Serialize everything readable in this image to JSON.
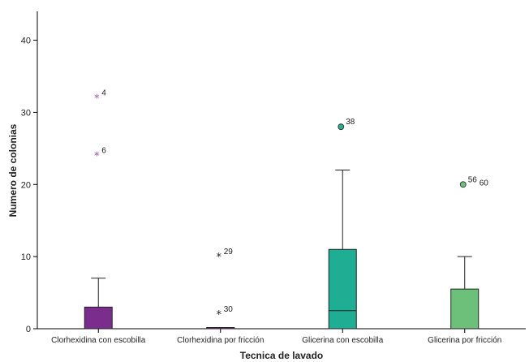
{
  "chart_data": {
    "type": "boxplot",
    "xlabel": "Tecnica de lavado",
    "ylabel": "Numero de colonias",
    "ylim": [
      0,
      44
    ],
    "yticks": [
      0,
      10,
      20,
      30,
      40
    ],
    "grid": false,
    "categories": [
      "Clorhexidina con escobilla",
      "Clorhexidina por fricción",
      "Glicerina con escobilla",
      "Glicerina por fricción"
    ],
    "boxes": [
      {
        "category": "Clorhexidina con escobilla",
        "color": "#7B2D8E",
        "min": 0,
        "q1": 0,
        "median": 0,
        "q3": 3,
        "max": 7,
        "outliers": [
          {
            "value": 32,
            "label": "4",
            "marker": "star",
            "color": "#9B4FA8"
          },
          {
            "value": 24,
            "label": "6",
            "marker": "star",
            "color": "#9B4FA8"
          }
        ]
      },
      {
        "category": "Clorhexidina por fricción",
        "color": "#7B2D8E",
        "min": 0,
        "q1": 0,
        "median": 0,
        "q3": 0,
        "max": 0,
        "outliers": [
          {
            "value": 10,
            "label": "29",
            "marker": "star",
            "color": "#222222"
          },
          {
            "value": 2,
            "label": "30",
            "marker": "star",
            "color": "#222222"
          }
        ]
      },
      {
        "category": "Glicerina con escobilla",
        "color": "#1FAE93",
        "min": 0,
        "q1": 0,
        "median": 2.5,
        "q3": 11,
        "max": 22,
        "outliers": [
          {
            "value": 28,
            "label": "38",
            "marker": "circle",
            "color": "#2BB08F"
          }
        ]
      },
      {
        "category": "Glicerina por fricción",
        "color": "#6CC07A",
        "min": 0,
        "q1": 0,
        "median": 0,
        "q3": 5.5,
        "max": 10,
        "outliers": [
          {
            "value": 20,
            "label": "56",
            "marker": "circle",
            "color": "#6CC07A"
          }
        ],
        "extra_labels": [
          "60"
        ]
      }
    ]
  }
}
